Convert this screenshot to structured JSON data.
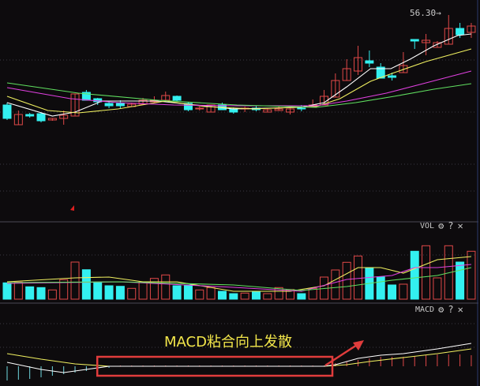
{
  "chart_data": {
    "type": "candlestick",
    "price_panel": {
      "high_marker": "56.30",
      "high_marker_arrow": "→",
      "ylim": [
        30.2,
        58.2
      ],
      "grid": "dotted",
      "colors": {
        "up": "#e04848",
        "down": "#33f0f0"
      },
      "candles": [
        [
          44.9,
          43.2,
          45.2,
          43.0
        ],
        [
          42.4,
          43.7,
          44.2,
          42.4
        ],
        [
          43.7,
          43.5,
          43.9,
          43.3
        ],
        [
          43.8,
          42.9,
          43.9,
          42.7
        ],
        [
          43.0,
          43.2,
          43.2,
          42.9
        ],
        [
          43.2,
          43.6,
          44.2,
          42.4
        ],
        [
          43.5,
          46.3,
          46.3,
          43.5
        ],
        [
          46.5,
          45.5,
          46.8,
          45.5
        ],
        [
          45.7,
          45.3,
          45.8,
          44.9
        ],
        [
          45.1,
          44.8,
          45.3,
          44.5
        ],
        [
          45.1,
          44.8,
          45.5,
          44.5
        ],
        [
          44.7,
          45.0,
          45.2,
          44.7
        ],
        [
          45.0,
          45.5,
          45.8,
          45.0
        ],
        [
          45.3,
          45.5,
          46.0,
          45.2
        ],
        [
          45.5,
          46.1,
          46.6,
          45.5
        ],
        [
          46.0,
          45.5,
          46.1,
          45.4
        ],
        [
          45.1,
          44.3,
          45.3,
          44.1
        ],
        [
          44.4,
          44.5,
          44.7,
          44.2
        ],
        [
          44.0,
          44.9,
          44.9,
          44.0
        ],
        [
          44.9,
          44.3,
          45.2,
          44.3
        ],
        [
          44.4,
          44.0,
          44.6,
          43.8
        ],
        [
          44.4,
          44.5,
          44.7,
          44.0
        ],
        [
          44.5,
          44.3,
          44.8,
          44.1
        ],
        [
          44.0,
          44.3,
          44.5,
          44.0
        ],
        [
          44.2,
          44.4,
          44.7,
          44.2
        ],
        [
          44.0,
          44.4,
          44.6,
          43.7
        ],
        [
          44.5,
          44.4,
          44.9,
          44.1
        ],
        [
          44.7,
          44.9,
          45.6,
          44.7
        ],
        [
          44.9,
          46.0,
          46.8,
          44.9
        ],
        [
          45.9,
          48.0,
          48.9,
          45.9
        ],
        [
          48.0,
          49.5,
          50.7,
          48.0
        ],
        [
          49.2,
          50.9,
          52.4,
          48.7
        ],
        [
          50.5,
          50.2,
          51.8,
          49.7
        ],
        [
          49.7,
          48.3,
          50.2,
          48.3
        ],
        [
          48.6,
          48.4,
          49.0,
          48.0
        ],
        [
          49.0,
          49.9,
          51.6,
          49.0
        ],
        [
          53.2,
          53.0,
          53.2,
          52.0
        ],
        [
          52.8,
          53.1,
          53.9,
          51.2
        ],
        [
          52.2,
          52.8,
          53.0,
          52.2
        ],
        [
          52.6,
          54.6,
          56.3,
          52.6
        ],
        [
          54.6,
          53.8,
          55.3,
          53.4
        ],
        [
          54.1,
          54.9,
          55.3,
          53.4
        ]
      ],
      "candle_fields": [
        "open",
        "close",
        "high",
        "low"
      ],
      "ma_lines": [
        {
          "color": "#ffffff",
          "points": [
            [
              0,
              45.2
            ],
            [
              4,
              43.5
            ],
            [
              6,
              44.0
            ],
            [
              8.4,
              45.4
            ],
            [
              13.3,
              45.4
            ],
            [
              16,
              45.0
            ],
            [
              20,
              44.4
            ],
            [
              25.9,
              44.6
            ],
            [
              28,
              45.2
            ],
            [
              30,
              47.2
            ],
            [
              32.1,
              49.5
            ],
            [
              33.9,
              49.5
            ],
            [
              35.6,
              50.7
            ],
            [
              37.7,
              52.4
            ],
            [
              39.8,
              53.7
            ],
            [
              41,
              53.9
            ]
          ]
        },
        {
          "color": "#f0f060",
          "points": [
            [
              0,
              46.0
            ],
            [
              3.6,
              44.2
            ],
            [
              6.3,
              43.9
            ],
            [
              9.8,
              44.4
            ],
            [
              14,
              45.4
            ],
            [
              17.5,
              44.7
            ],
            [
              21.7,
              44.4
            ],
            [
              27.3,
              44.7
            ],
            [
              29.4,
              45.7
            ],
            [
              32.1,
              47.9
            ],
            [
              34.2,
              49.0
            ],
            [
              37,
              50.4
            ],
            [
              41,
              52.0
            ]
          ]
        },
        {
          "color": "#e040e0",
          "points": [
            [
              0,
              47.1
            ],
            [
              5.6,
              45.7
            ],
            [
              9.8,
              45.2
            ],
            [
              14.7,
              44.9
            ],
            [
              20.3,
              44.8
            ],
            [
              27.3,
              44.8
            ],
            [
              30,
              45.4
            ],
            [
              33.5,
              46.4
            ],
            [
              37,
              47.7
            ],
            [
              41,
              49.2
            ]
          ]
        },
        {
          "color": "#60e060",
          "points": [
            [
              0,
              47.7
            ],
            [
              6.3,
              46.4
            ],
            [
              13.3,
              45.5
            ],
            [
              20.3,
              44.9
            ],
            [
              27.3,
              44.6
            ],
            [
              30.8,
              45.2
            ],
            [
              34.2,
              46.0
            ],
            [
              37.7,
              46.9
            ],
            [
              41,
              47.6
            ]
          ]
        }
      ]
    },
    "volume_panel": {
      "label": "VOL",
      "ylim": [
        0,
        90
      ],
      "values": [
        20.7,
        21.7,
        15.7,
        14.7,
        11.7,
        24.7,
        47,
        37.3,
        21.7,
        17,
        16.3,
        13.7,
        21.7,
        26.3,
        30.7,
        17,
        18,
        11.7,
        14.7,
        10,
        7,
        7.7,
        9,
        7,
        14.7,
        12.3,
        7,
        13.7,
        28,
        37,
        46.7,
        54.7,
        39.7,
        28.3,
        18,
        19,
        60.7,
        67.7,
        27,
        67.7,
        47,
        60.7
      ],
      "ma_lines": [
        {
          "color": "#f0f060",
          "points": [
            [
              0,
              22
            ],
            [
              6,
              27
            ],
            [
              9,
              28
            ],
            [
              12,
              22
            ],
            [
              15,
              22
            ],
            [
              20,
              10
            ],
            [
              25,
              10
            ],
            [
              28,
              17
            ],
            [
              31,
              40
            ],
            [
              33,
              40
            ],
            [
              35,
              33
            ],
            [
              38,
              50
            ],
            [
              41,
              54
            ]
          ]
        },
        {
          "color": "#e040e0",
          "points": [
            [
              0,
              20
            ],
            [
              10,
              22
            ],
            [
              20,
              15
            ],
            [
              26,
              10
            ],
            [
              30,
              25
            ],
            [
              34,
              30
            ],
            [
              36,
              40
            ],
            [
              38,
              40
            ],
            [
              41,
              44
            ]
          ]
        },
        {
          "color": "#60e060",
          "points": [
            [
              0,
              21
            ],
            [
              10,
              22
            ],
            [
              20,
              18
            ],
            [
              26,
              11
            ],
            [
              30,
              16
            ],
            [
              34,
              24
            ],
            [
              38,
              30
            ],
            [
              41,
              40
            ]
          ]
        }
      ]
    },
    "macd_panel": {
      "label": "MACD",
      "ylim": [
        -2.5,
        7.9
      ],
      "histogram": [
        -1.8,
        -1.7,
        -1.6,
        -1.4,
        -1.2,
        -1.0,
        -0.8,
        -0.6,
        -0.3,
        -0.2,
        0.1,
        0.1,
        0.1,
        0.1,
        0.1,
        0.1,
        0.1,
        0.1,
        0.1,
        0.1,
        0.1,
        0.1,
        0.1,
        0.1,
        0.1,
        0.1,
        0.1,
        0.1,
        0.1,
        0.4,
        0.6,
        0.8,
        1.0,
        1.2,
        1.2,
        1.2,
        1.3,
        1.4,
        1.5,
        1.5,
        1.5,
        1.4
      ],
      "dif": {
        "color": "#ffffff",
        "points": [
          [
            0,
            0.5
          ],
          [
            3,
            -0.4
          ],
          [
            5,
            -0.8
          ],
          [
            7,
            -0.4
          ],
          [
            9,
            0
          ],
          [
            28,
            0
          ],
          [
            29,
            0.2
          ],
          [
            31,
            1.0
          ],
          [
            33,
            1.4
          ],
          [
            35,
            1.6
          ],
          [
            38,
            2.2
          ],
          [
            41,
            2.9
          ]
        ]
      },
      "dea": {
        "color": "#f0f060",
        "points": [
          [
            0,
            1.6
          ],
          [
            3,
            0.9
          ],
          [
            6,
            0.3
          ],
          [
            9,
            0
          ],
          [
            28,
            0
          ],
          [
            30,
            0.2
          ],
          [
            32,
            0.6
          ],
          [
            35,
            1.1
          ],
          [
            38,
            1.6
          ],
          [
            41,
            2.2
          ]
        ]
      }
    },
    "annotation": {
      "text": "MACD粘合向上发散",
      "color": "#f2e64a",
      "box_color": "#e03c3c",
      "box_from_candle": 8,
      "box_to_candle": 28
    }
  },
  "panel_icons": {
    "settings": "gear-icon",
    "help": "?",
    "close": "✕"
  }
}
